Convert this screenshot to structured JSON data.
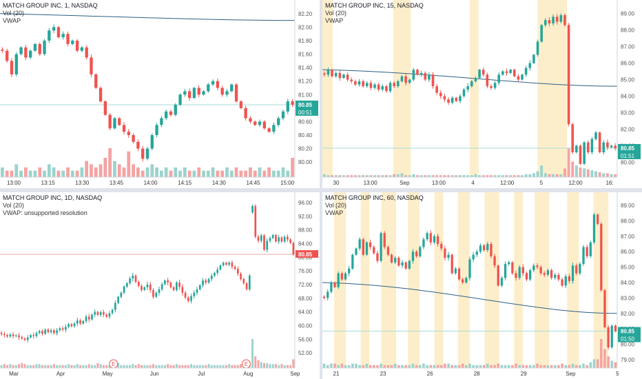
{
  "colors": {
    "up": "#26a69a",
    "down": "#ef5350",
    "volUp": "#9bd3cd",
    "volDown": "#f5a3a3",
    "vwap": "#2a5f86",
    "session": "#fdeecb",
    "price_line": "#a6dcd6",
    "price_line_red": "#f2a6a6"
  },
  "panes": [
    {
      "id": "tl",
      "title": "MATCH GROUP INC, 1, NASDAQ",
      "lines": [
        "Vol (20)",
        "VWAP"
      ],
      "price_label": "80.85",
      "time_label": "00:51",
      "label_color": "#26a69a",
      "chart_data": {
        "type": "candlestick",
        "ylim": [
          79.9,
          82.3
        ],
        "y_ticks": [
          "82.20",
          "82.00",
          "81.80",
          "81.60",
          "81.40",
          "81.20",
          "81.00",
          "80.80",
          "80.60",
          "80.40",
          "80.20",
          "80.00"
        ],
        "x_ticks": [
          "13:00",
          "13:15",
          "13:30",
          "13:45",
          "14:00",
          "14:15",
          "14:30",
          "14:45",
          "15:00"
        ],
        "last_price": 80.85,
        "vwap": {
          "from": 82.2,
          "to": 82.1
        },
        "path": [
          81.65,
          81.5,
          81.3,
          81.6,
          81.7,
          81.55,
          81.65,
          81.75,
          81.6,
          81.8,
          81.95,
          82.0,
          81.85,
          81.9,
          81.75,
          81.8,
          81.65,
          81.7,
          81.55,
          81.3,
          81.1,
          80.9,
          80.7,
          80.5,
          80.65,
          80.55,
          80.45,
          80.4,
          80.3,
          80.2,
          80.05,
          80.2,
          80.4,
          80.55,
          80.65,
          80.75,
          80.7,
          80.85,
          81.0,
          81.05,
          80.95,
          81.1,
          81.0,
          81.05,
          81.15,
          81.2,
          81.1,
          81.0,
          81.05,
          81.15,
          80.9,
          80.8,
          80.65,
          80.6,
          80.55,
          80.6,
          80.5,
          80.45,
          80.55,
          80.65,
          80.75,
          80.9,
          80.85
        ],
        "volume": [
          3,
          2,
          2,
          4,
          2,
          3,
          2,
          2,
          3,
          2,
          4,
          3,
          2,
          2,
          3,
          2,
          2,
          3,
          5,
          4,
          3,
          4,
          6,
          9,
          5,
          4,
          3,
          8,
          4,
          3,
          2,
          3,
          4,
          3,
          2,
          3,
          2,
          3,
          2,
          3,
          2,
          2,
          3,
          2,
          2,
          3,
          2,
          2,
          3,
          2,
          3,
          2,
          2,
          3,
          2,
          3,
          2,
          3,
          2,
          2,
          3,
          2,
          6
        ]
      }
    },
    {
      "id": "tr",
      "title": "MATCH GROUP INC, 15, NASDAQ",
      "lines": [
        "Vol (20)",
        "VWAP"
      ],
      "price_label": "80.85",
      "time_label": "01:51",
      "label_color": "#26a69a",
      "chart_data": {
        "type": "candlestick",
        "ylim": [
          79.6,
          89.4
        ],
        "y_ticks": [
          "89.00",
          "88.00",
          "87.00",
          "86.00",
          "85.00",
          "84.00",
          "83.00",
          "82.00",
          "81.00",
          "80.00"
        ],
        "x_ticks": [
          "30",
          "13:00",
          "Sep",
          "13:00",
          "4",
          "12:00",
          "5",
          "12:00",
          "16:"
        ],
        "last_price": 80.85,
        "sessions": [
          [
            0.0,
            0.035
          ],
          [
            0.24,
            0.3
          ],
          [
            0.5,
            0.53
          ],
          [
            0.73,
            0.83
          ]
        ],
        "vwap": {
          "from": 85.6,
          "to": 84.6
        },
        "path": [
          85.3,
          85.6,
          85.2,
          85.4,
          85.1,
          85.3,
          85.0,
          84.9,
          84.7,
          84.9,
          84.6,
          84.8,
          84.5,
          84.7,
          84.4,
          84.6,
          84.3,
          84.8,
          84.6,
          84.9,
          85.2,
          84.8,
          85.0,
          85.6,
          85.3,
          85.4,
          85.0,
          85.3,
          84.6,
          84.2,
          84.0,
          83.8,
          83.6,
          83.9,
          83.7,
          84.0,
          84.4,
          84.6,
          84.9,
          85.1,
          85.6,
          85.3,
          84.6,
          84.5,
          84.8,
          85.3,
          85.5,
          85.4,
          85.6,
          85.2,
          85.0,
          85.3,
          85.7,
          86.0,
          86.5,
          87.3,
          88.3,
          88.6,
          88.4,
          88.8,
          88.5,
          88.9,
          88.3,
          82.3,
          80.6,
          81.0,
          79.9,
          81.2,
          80.6,
          81.4,
          81.8,
          80.6,
          81.2,
          80.9,
          81.0,
          80.85
        ],
        "volume": [
          3,
          2,
          2,
          2,
          2,
          2,
          2,
          2,
          2,
          2,
          2,
          2,
          2,
          2,
          2,
          2,
          2,
          2,
          3,
          3,
          4,
          2,
          2,
          3,
          2,
          2,
          2,
          2,
          2,
          2,
          2,
          2,
          2,
          2,
          2,
          2,
          2,
          2,
          2,
          3,
          2,
          2,
          2,
          2,
          2,
          2,
          2,
          2,
          2,
          2,
          2,
          2,
          3,
          3,
          4,
          6,
          12,
          4,
          3,
          3,
          3,
          3,
          9,
          30,
          16,
          12,
          10,
          9,
          8,
          7,
          6,
          5,
          4,
          4,
          3,
          3
        ]
      }
    },
    {
      "id": "bl",
      "title": "MATCH GROUP INC, 1D, NASDAQ",
      "lines": [
        "Vol (20)",
        "VWAP: unsupported resolution"
      ],
      "price_label": "80.85",
      "time_label": "",
      "label_color": "#ef5350",
      "chart_data": {
        "type": "candlestick",
        "ylim": [
          50,
          97
        ],
        "y_ticks": [
          "96.00",
          "92.00",
          "88.00",
          "84.00",
          "80.00",
          "76.00",
          "72.00",
          "68.00",
          "64.00",
          "60.00",
          "56.00",
          "52.00"
        ],
        "x_ticks": [
          "Mar",
          "Apr",
          "May",
          "Jun",
          "Jul",
          "Aug",
          "Sep"
        ],
        "last_price": 80.85,
        "earnings": [
          "E",
          "E"
        ],
        "path": [
          57.5,
          57.2,
          56.8,
          57.4,
          56.9,
          57.1,
          56.6,
          56.2,
          55.8,
          56.5,
          57.2,
          56.9,
          57.8,
          58.4,
          57.6,
          58.8,
          58.1,
          58.6,
          57.8,
          58.6,
          59.2,
          58.8,
          59.6,
          60.4,
          59.8,
          60.6,
          61.5,
          60.6,
          61.3,
          62.6,
          61.8,
          63.2,
          64.0,
          63.1,
          63.9,
          63.2,
          62.6,
          63.6,
          64.6,
          66.6,
          68.4,
          69.6,
          71.4,
          72.4,
          73.8,
          74.6,
          72.8,
          71.6,
          70.4,
          71.2,
          72.0,
          70.4,
          68.4,
          69.6,
          70.6,
          72.1,
          73.2,
          72.6,
          71.2,
          70.4,
          72.6,
          71.3,
          69.6,
          68.2,
          67.2,
          68.6,
          69.6,
          70.6,
          71.8,
          73.2,
          72.6,
          73.6,
          74.6,
          75.4,
          76.4,
          77.6,
          78.4,
          77.8,
          78.4,
          77.2,
          76.6,
          75.2,
          73.6,
          72.4,
          70.6,
          74.6,
          95.0,
          86.0,
          84.8,
          86.4,
          82.2,
          84.8,
          85.6,
          86.5,
          84.6,
          85.8,
          84.6,
          86.0,
          85.2,
          84.2,
          80.85
        ],
        "gaps": [
          86
        ],
        "volume": [
          3,
          4,
          3,
          4,
          3,
          3,
          4,
          5,
          4,
          3,
          3,
          3,
          4,
          4,
          3,
          3,
          3,
          3,
          4,
          3,
          3,
          3,
          3,
          4,
          3,
          3,
          4,
          3,
          3,
          3,
          4,
          3,
          3,
          5,
          4,
          3,
          3,
          3,
          4,
          4,
          5,
          3,
          3,
          3,
          3,
          4,
          3,
          4,
          3,
          3,
          3,
          3,
          4,
          3,
          3,
          3,
          3,
          4,
          3,
          3,
          4,
          3,
          3,
          3,
          3,
          4,
          3,
          3,
          3,
          3,
          3,
          4,
          3,
          3,
          3,
          3,
          3,
          3,
          4,
          3,
          3,
          3,
          4,
          3,
          3,
          3,
          30,
          12,
          8,
          6,
          5,
          5,
          4,
          4,
          4,
          3,
          4,
          3,
          3,
          3,
          9
        ]
      }
    },
    {
      "id": "br",
      "title": "MATCH GROUP INC, 60, NASDAQ",
      "lines": [
        "Vol (20)",
        "VWAP"
      ],
      "price_label": "80.85",
      "time_label": "01:50",
      "label_color": "#26a69a",
      "chart_data": {
        "type": "candlestick",
        "ylim": [
          79.0,
          89.4
        ],
        "y_ticks": [
          "89.00",
          "88.00",
          "87.00",
          "86.00",
          "85.00",
          "84.00",
          "83.00",
          "82.00",
          "81.00",
          "80.00",
          "79.00"
        ],
        "x_ticks": [
          "21",
          "23",
          "26",
          "28",
          "29",
          "Sep",
          "5"
        ],
        "last_price": 80.85,
        "sessions": [
          [
            0.04,
            0.08
          ],
          [
            0.13,
            0.16
          ],
          [
            0.2,
            0.25
          ],
          [
            0.29,
            0.33
          ],
          [
            0.38,
            0.41
          ],
          [
            0.46,
            0.5
          ],
          [
            0.55,
            0.6
          ],
          [
            0.65,
            0.68
          ],
          [
            0.72,
            0.77
          ],
          [
            0.83,
            0.87
          ],
          [
            0.92,
            0.97
          ]
        ],
        "vwap": {
          "from": 84.0,
          "to": 82.0
        },
        "path": [
          83.0,
          83.4,
          84.0,
          83.7,
          84.6,
          84.2,
          84.6,
          84.9,
          85.8,
          86.2,
          86.8,
          85.8,
          86.6,
          86.3,
          85.9,
          85.4,
          87.2,
          86.3,
          85.8,
          85.3,
          85.6,
          85.1,
          85.3,
          84.9,
          85.4,
          86.0,
          85.7,
          86.3,
          86.8,
          87.2,
          86.6,
          87.0,
          86.5,
          86.2,
          85.6,
          85.8,
          84.6,
          84.9,
          84.2,
          84.0,
          84.3,
          85.5,
          85.8,
          86.0,
          86.4,
          86.1,
          86.5,
          85.7,
          85.1,
          83.8,
          84.3,
          85.2,
          85.3,
          84.6,
          84.3,
          85.0,
          84.6,
          84.2,
          84.8,
          85.1,
          85.0,
          84.6,
          84.5,
          84.8,
          84.3,
          84.5,
          84.2,
          83.8,
          84.4,
          84.1,
          85.1,
          84.6,
          85.2,
          86.3,
          85.7,
          86.6,
          88.4,
          87.8,
          83.5,
          81.1,
          79.8,
          81.2,
          80.85
        ],
        "volume": [
          3,
          2,
          3,
          3,
          2,
          3,
          2,
          2,
          3,
          3,
          2,
          2,
          3,
          2,
          2,
          2,
          3,
          2,
          2,
          2,
          3,
          2,
          2,
          2,
          2,
          3,
          2,
          2,
          3,
          2,
          2,
          2,
          2,
          2,
          3,
          3,
          2,
          2,
          2,
          3,
          2,
          3,
          2,
          2,
          2,
          2,
          3,
          2,
          2,
          3,
          2,
          2,
          2,
          2,
          3,
          2,
          2,
          2,
          2,
          2,
          3,
          2,
          2,
          2,
          2,
          2,
          2,
          3,
          2,
          2,
          3,
          2,
          2,
          3,
          2,
          4,
          6,
          6,
          20,
          13,
          8,
          5,
          4
        ]
      }
    }
  ]
}
